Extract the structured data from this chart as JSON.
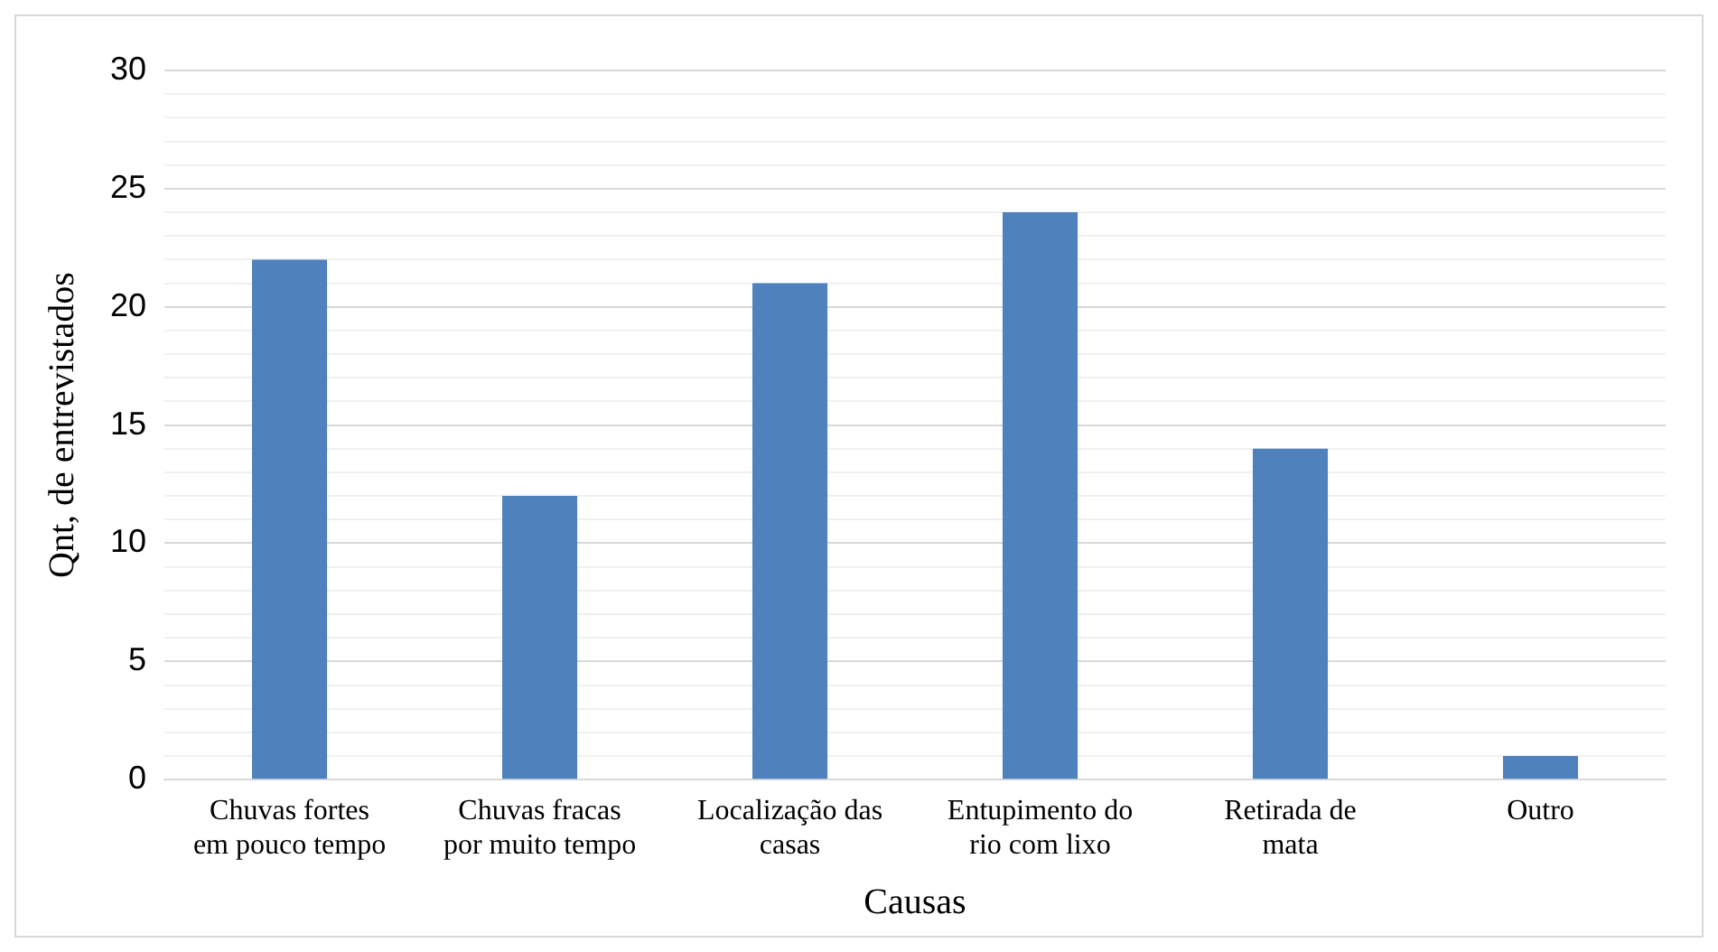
{
  "chart_data": {
    "type": "bar",
    "xlabel": "Causas",
    "ylabel": "Qnt, de entrevistados",
    "categories": [
      "Chuvas fortes em pouco tempo",
      "Chuvas fracas por muito tempo",
      "Localização das casas",
      "Entupimento do rio com lixo",
      "Retirada de mata",
      "Outro"
    ],
    "values": [
      22,
      12,
      21,
      24,
      14,
      1
    ],
    "color": "#4f81bd",
    "ylim": [
      0,
      30
    ],
    "yticks": [
      0,
      {
        "value": 1,
        "label": null
      },
      {
        "value": 2,
        "label": null
      },
      {
        "value": 3,
        "label": null
      },
      {
        "value": 4,
        "label": null
      },
      5,
      {
        "value": 6,
        "label": null
      },
      {
        "value": 7,
        "label": null
      },
      {
        "value": 8,
        "label": null
      },
      {
        "value": 9,
        "label": null
      },
      10,
      {
        "value": 11,
        "label": null
      },
      {
        "value": 12,
        "label": null
      },
      {
        "value": 13,
        "label": null
      },
      {
        "value": 14,
        "label": null
      },
      15,
      {
        "value": 16,
        "label": null
      },
      {
        "value": 17,
        "label": null
      },
      {
        "value": 18,
        "label": null
      },
      {
        "value": 19,
        "label": null
      },
      20,
      {
        "value": 21,
        "label": null
      },
      {
        "value": 22,
        "label": null
      },
      {
        "value": 23,
        "label": null
      },
      {
        "value": 24,
        "label": null
      },
      25,
      {
        "value": 26,
        "label": null
      },
      {
        "value": 27,
        "label": null
      },
      {
        "value": 28,
        "label": null
      },
      {
        "value": 29,
        "label": null
      },
      30
    ],
    "grid": "y",
    "legend": false
  }
}
